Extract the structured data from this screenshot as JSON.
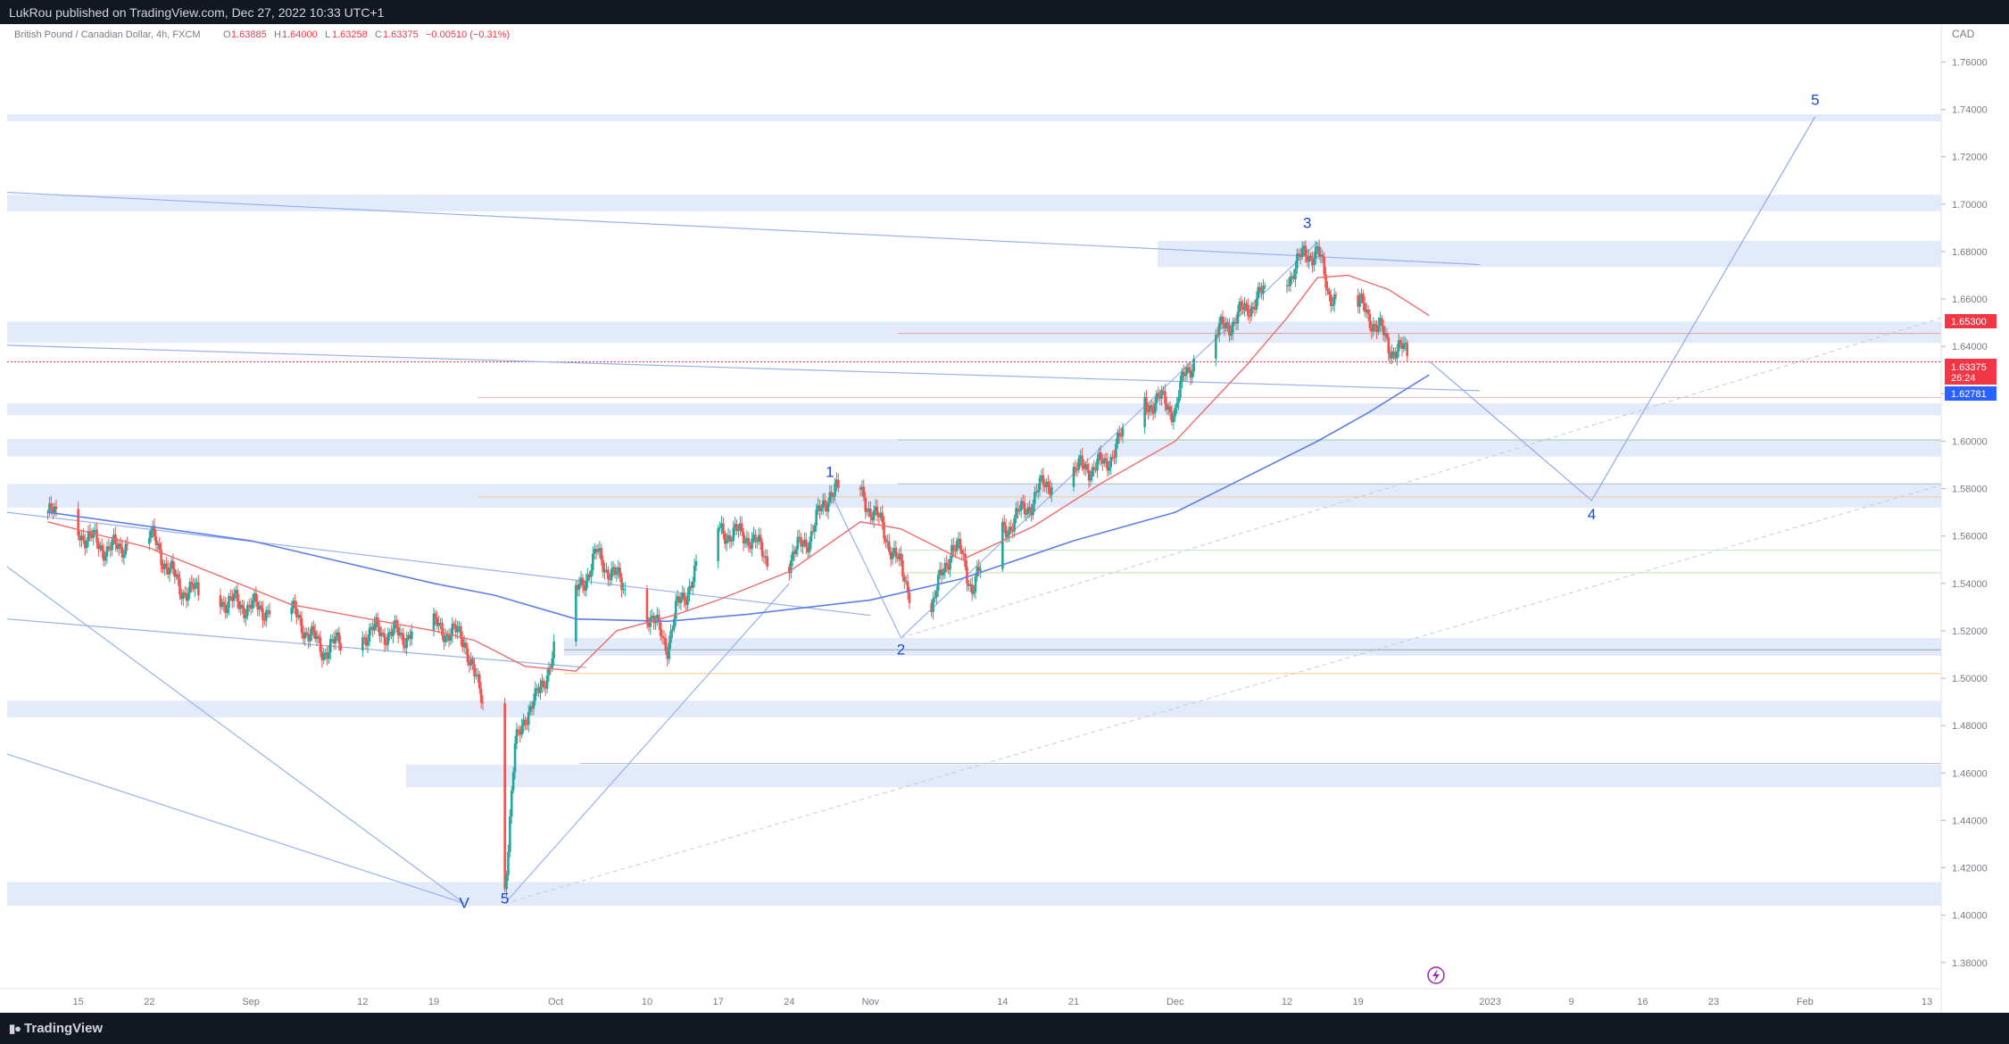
{
  "header": {
    "published": "LukRou published on TradingView.com, Dec 27, 2022 10:33 UTC+1"
  },
  "legend": {
    "symbol": "British Pound / Canadian Dollar, 4h, FXCM",
    "open_label": "O",
    "open": "1.63885",
    "high_label": "H",
    "high": "1.64000",
    "low_label": "L",
    "low": "1.63258",
    "close_label": "C",
    "close": "1.63375",
    "change": "−0.00510 (−0.31%)"
  },
  "footer": {
    "brand": "TradingView"
  },
  "colors": {
    "up": "#26a69a",
    "down": "#ef5350",
    "ema_fast": "#f06b6b",
    "ema_slow": "#5c7fe6",
    "wave": "#1848d8",
    "zone": "#e3ebfb",
    "trendline": "#97b1ef",
    "price_badge": "#f23645",
    "ema_badge": "#2962ff"
  },
  "chart_data": {
    "type": "candlestick",
    "title": "British Pound / Canadian Dollar, 4h, FXCM",
    "currency": "CAD",
    "y_ticks": [
      "1.76000",
      "1.74000",
      "1.72000",
      "1.70000",
      "1.68000",
      "1.66000",
      "1.64000",
      "1.62000",
      "1.60000",
      "1.58000",
      "1.56000",
      "1.54000",
      "1.52000",
      "1.50000",
      "1.48000",
      "1.46000",
      "1.44000",
      "1.42000",
      "1.40000",
      "1.38000"
    ],
    "ylim": [
      1.369,
      1.776
    ],
    "x_ticks": [
      "15",
      "22",
      "Sep",
      "12",
      "19",
      "Oct",
      "10",
      "17",
      "24",
      "Nov",
      "14",
      "21",
      "Dec",
      "12",
      "19",
      "2023",
      "9",
      "16",
      "23",
      "Feb",
      "13"
    ],
    "last_price": {
      "value": "1.63375",
      "countdown": "26:24"
    },
    "marked_levels": [
      "1.65300",
      "1.62781"
    ],
    "price_path": [
      [
        "2022-08-12",
        1.57
      ],
      [
        "2022-08-18",
        1.554
      ],
      [
        "2022-08-22",
        1.561
      ],
      [
        "2022-08-25",
        1.538
      ],
      [
        "2022-09-01",
        1.53
      ],
      [
        "2022-09-05",
        1.528
      ],
      [
        "2022-09-08",
        1.512
      ],
      [
        "2022-09-13",
        1.52
      ],
      [
        "2022-09-16",
        1.518
      ],
      [
        "2022-09-19",
        1.522
      ],
      [
        "2022-09-22",
        1.517
      ],
      [
        "2022-09-23",
        1.5
      ],
      [
        "2022-09-25",
        1.478
      ],
      [
        "2022-09-26",
        1.412
      ],
      [
        "2022-09-27",
        1.47
      ],
      [
        "2022-09-28",
        1.485
      ],
      [
        "2022-09-29",
        1.49
      ],
      [
        "2022-10-03",
        1.535
      ],
      [
        "2022-10-05",
        1.552
      ],
      [
        "2022-10-07",
        1.542
      ],
      [
        "2022-10-10",
        1.528
      ],
      [
        "2022-10-12",
        1.514
      ],
      [
        "2022-10-13",
        1.53
      ],
      [
        "2022-10-17",
        1.562
      ],
      [
        "2022-10-20",
        1.56
      ],
      [
        "2022-10-23",
        1.545
      ],
      [
        "2022-10-26",
        1.56
      ],
      [
        "2022-10-28",
        1.579
      ],
      [
        "2022-10-31",
        1.578
      ],
      [
        "2022-11-02",
        1.565
      ],
      [
        "2022-11-05",
        1.536
      ],
      [
        "2022-11-07",
        1.53
      ],
      [
        "2022-11-09",
        1.556
      ],
      [
        "2022-11-10",
        1.552
      ],
      [
        "2022-11-11",
        1.538
      ],
      [
        "2022-11-14",
        1.562
      ],
      [
        "2022-11-17",
        1.575
      ],
      [
        "2022-11-18",
        1.582
      ],
      [
        "2022-11-21",
        1.588
      ],
      [
        "2022-11-24",
        1.59
      ],
      [
        "2022-11-28",
        1.616
      ],
      [
        "2022-11-30",
        1.617
      ],
      [
        "2022-12-01",
        1.612
      ],
      [
        "2022-12-02",
        1.63
      ],
      [
        "2022-12-05",
        1.645
      ],
      [
        "2022-12-07",
        1.652
      ],
      [
        "2022-12-09",
        1.66
      ],
      [
        "2022-12-12",
        1.668
      ],
      [
        "2022-12-13",
        1.676
      ],
      [
        "2022-12-15",
        1.681
      ],
      [
        "2022-12-16",
        1.663
      ],
      [
        "2022-12-19",
        1.658
      ],
      [
        "2022-12-21",
        1.648
      ],
      [
        "2022-12-22",
        1.64
      ],
      [
        "2022-12-26",
        1.6338
      ]
    ],
    "ema_fast": [
      [
        "2022-08-12",
        1.566
      ],
      [
        "2022-08-22",
        1.555
      ],
      [
        "2022-09-05",
        1.531
      ],
      [
        "2022-09-19",
        1.52
      ],
      [
        "2022-09-23",
        1.516
      ],
      [
        "2022-09-28",
        1.505
      ],
      [
        "2022-10-03",
        1.503
      ],
      [
        "2022-10-07",
        1.52
      ],
      [
        "2022-10-13",
        1.527
      ],
      [
        "2022-10-17",
        1.533
      ],
      [
        "2022-10-24",
        1.545
      ],
      [
        "2022-10-31",
        1.566
      ],
      [
        "2022-11-04",
        1.563
      ],
      [
        "2022-11-10",
        1.55
      ],
      [
        "2022-11-17",
        1.564
      ],
      [
        "2022-11-24",
        1.583
      ],
      [
        "2022-12-01",
        1.6
      ],
      [
        "2022-12-08",
        1.632
      ],
      [
        "2022-12-12",
        1.652
      ],
      [
        "2022-12-15",
        1.669
      ],
      [
        "2022-12-18",
        1.67
      ],
      [
        "2022-12-22",
        1.664
      ],
      [
        "2022-12-26",
        1.653
      ]
    ],
    "ema_slow": [
      [
        "2022-08-12",
        1.57
      ],
      [
        "2022-09-01",
        1.558
      ],
      [
        "2022-09-19",
        1.54
      ],
      [
        "2022-09-25",
        1.535
      ],
      [
        "2022-10-03",
        1.525
      ],
      [
        "2022-10-12",
        1.524
      ],
      [
        "2022-10-20",
        1.527
      ],
      [
        "2022-11-01",
        1.533
      ],
      [
        "2022-11-10",
        1.542
      ],
      [
        "2022-11-21",
        1.558
      ],
      [
        "2022-12-01",
        1.57
      ],
      [
        "2022-12-08",
        1.585
      ],
      [
        "2022-12-15",
        1.6
      ],
      [
        "2022-12-20",
        1.612
      ],
      [
        "2022-12-26",
        1.628
      ]
    ],
    "projection": [
      [
        "2022-12-26",
        1.6338
      ],
      [
        "2023-01-11",
        1.575
      ],
      [
        "2023-02-02",
        1.737
      ]
    ],
    "wave_labels": [
      {
        "text": "V",
        "x": "2022-09-22",
        "y": 1.403
      },
      {
        "text": "5",
        "x": "2022-09-26",
        "y": 1.405
      },
      {
        "text": "1",
        "x": "2022-10-28",
        "y": 1.585
      },
      {
        "text": "2",
        "x": "2022-11-04",
        "y": 1.51
      },
      {
        "text": "3",
        "x": "2022-12-14",
        "y": 1.69
      },
      {
        "text": "4",
        "x": "2023-01-11",
        "y": 1.567
      },
      {
        "text": "5",
        "x": "2023-02-02",
        "y": 1.742
      }
    ]
  }
}
